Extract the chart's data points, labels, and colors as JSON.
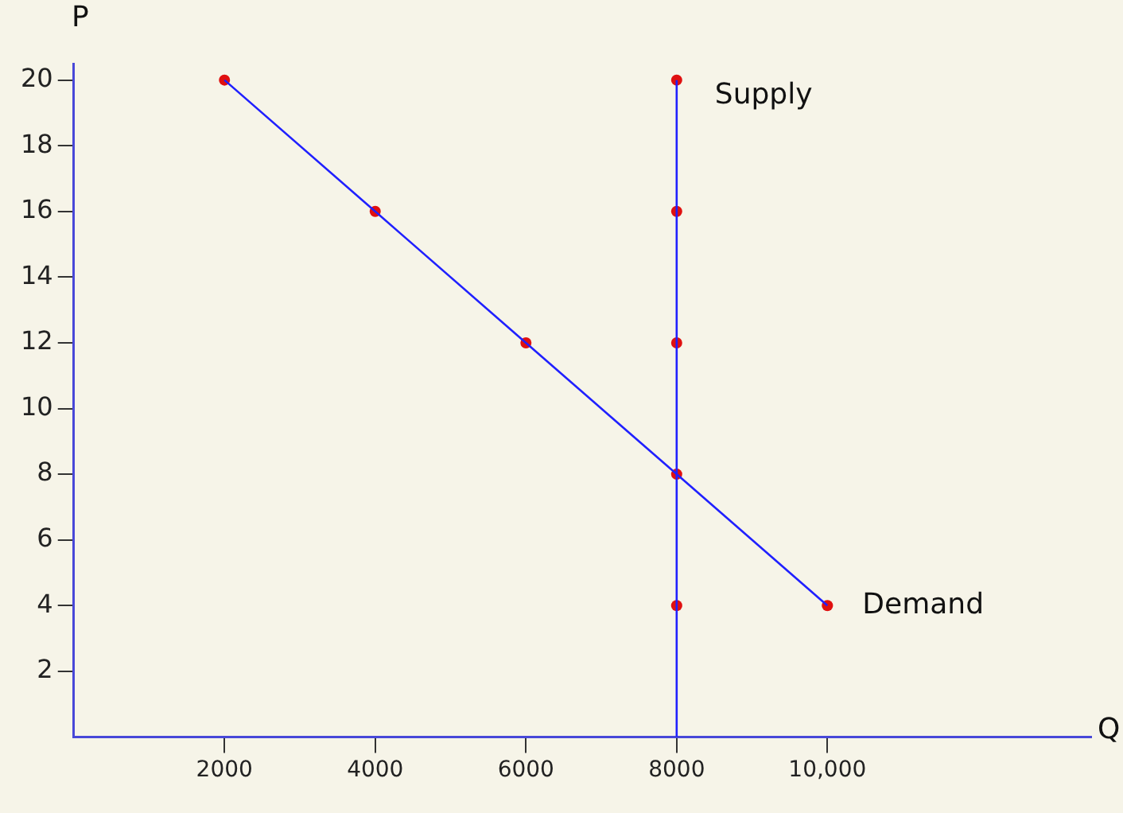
{
  "chart_data": {
    "type": "line",
    "xlabel": "Q",
    "ylabel": "P",
    "series": [
      {
        "name": "Supply",
        "type": "line",
        "color": "#2020ff",
        "x": [
          8000,
          8000
        ],
        "values": [
          0,
          20
        ],
        "marker": "none"
      },
      {
        "name": "Demand",
        "type": "line",
        "color": "#2020ff",
        "x": [
          2000,
          4000,
          6000,
          8000,
          10000
        ],
        "values": [
          20,
          16,
          12,
          8,
          4
        ],
        "marker": "none"
      },
      {
        "type": "scatter",
        "color": "#e01010",
        "x": [
          8000,
          8000,
          8000,
          8000,
          8000
        ],
        "values": [
          20,
          16,
          12,
          8,
          4
        ],
        "marker": "circle"
      },
      {
        "type": "scatter",
        "color": "#e01010",
        "x": [
          2000,
          4000,
          6000,
          8000,
          10000
        ],
        "values": [
          20,
          16,
          12,
          null,
          4
        ],
        "marker": "circle"
      }
    ],
    "xlim": [
      0,
      13500
    ],
    "ylim": [
      0,
      20.5
    ],
    "xticks": [
      2000,
      4000,
      6000,
      8000,
      {
        "value": 10000,
        "label": "10,000"
      }
    ],
    "yticks": [
      2,
      4,
      6,
      8,
      10,
      12,
      14,
      16,
      18,
      20
    ],
    "grid": false,
    "legend": false
  }
}
